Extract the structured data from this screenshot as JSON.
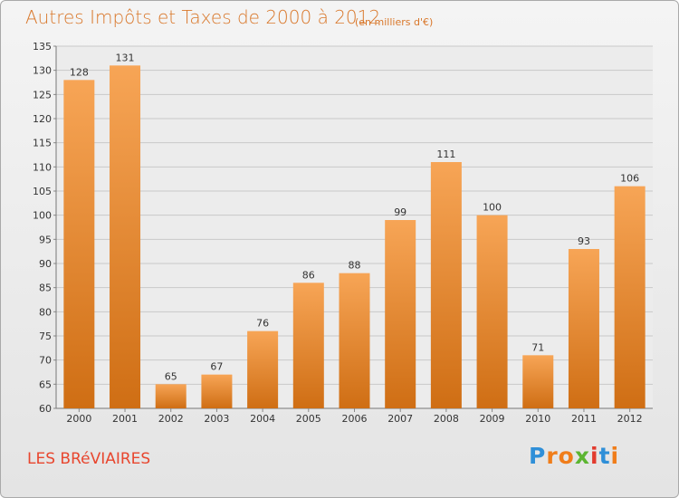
{
  "header": {
    "title": "Autres Impôts et Taxes de 2000 à 2012",
    "subtitle": "(en milliers d'€)"
  },
  "footer": {
    "commune": "LES BRéVIAIRES",
    "brand_letters": [
      "P",
      "r",
      "o",
      "x",
      "i",
      "t",
      "i"
    ]
  },
  "colors": {
    "bar_top": "#f7a556",
    "bar_bottom": "#cf6e14",
    "text_accent": "#d9772a",
    "commune": "#e8462e",
    "brand": [
      "#2f8fd8",
      "#f07d1a",
      "#f07d1a",
      "#5cb531",
      "#e23b2e",
      "#2f8fd8",
      "#f07d1a"
    ]
  },
  "chart_data": {
    "type": "bar",
    "categories": [
      "2000",
      "2001",
      "2002",
      "2003",
      "2004",
      "2005",
      "2006",
      "2007",
      "2008",
      "2009",
      "2010",
      "2011",
      "2012"
    ],
    "values": [
      128,
      131,
      65,
      67,
      76,
      86,
      88,
      99,
      111,
      100,
      71,
      93,
      106
    ],
    "title": "Autres Impôts et Taxes de 2000 à 2012",
    "subtitle": "(en milliers d'€)",
    "xlabel": "",
    "ylabel": "",
    "ylim": [
      60,
      135
    ],
    "yticks": [
      60,
      65,
      70,
      75,
      80,
      85,
      90,
      95,
      100,
      105,
      110,
      115,
      120,
      125,
      130,
      135
    ],
    "grid": true,
    "data_labels": true
  }
}
